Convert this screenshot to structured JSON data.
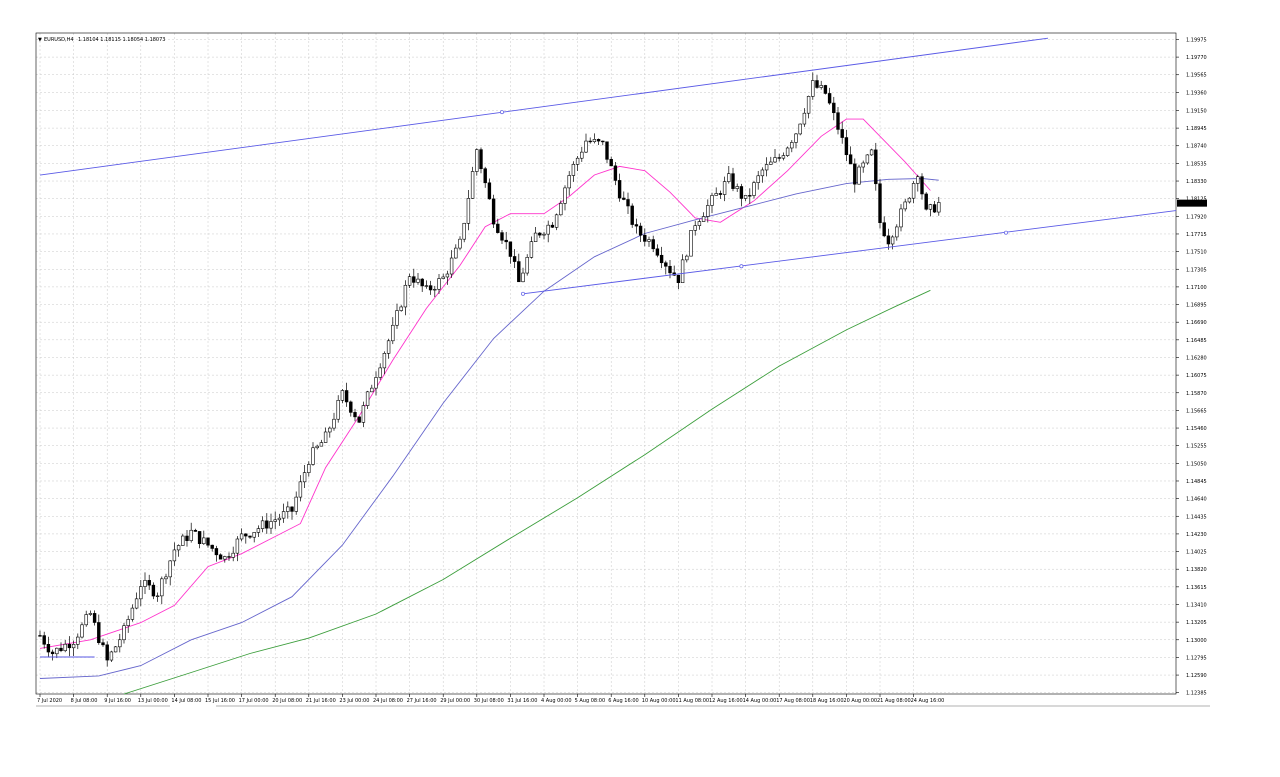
{
  "symbol": {
    "marker": "▼",
    "name": "EURUSD,H4",
    "quote": "1.18104 1.18115 1.18054 1.18073"
  },
  "colors": {
    "background": "#ffffff",
    "grid": "#c8c8c8",
    "candle": "#000000",
    "ma_fast": "#ff33cc",
    "ma_mid": "#6666cc",
    "ma_slow": "#3c9e3c",
    "trendline": "#5a5ae6",
    "price_label_bg": "#000000",
    "price_label_text": "#ffffff"
  },
  "chart_data": {
    "type": "candlestick",
    "grid": true,
    "price_axis_position": "right",
    "time_axis_position": "bottom",
    "ylim": [
      1.1237,
      1.2005
    ],
    "current_price": {
      "value": 1.18073,
      "label": "1.18073"
    },
    "y_ticks": [
      {
        "value": 1.19975,
        "label": "1.19975"
      },
      {
        "value": 1.1977,
        "label": "1.19770"
      },
      {
        "value": 1.19565,
        "label": "1.19565"
      },
      {
        "value": 1.1936,
        "label": "1.19360"
      },
      {
        "value": 1.1915,
        "label": "1.19150"
      },
      {
        "value": 1.18945,
        "label": "1.18945"
      },
      {
        "value": 1.1874,
        "label": "1.18740"
      },
      {
        "value": 1.18535,
        "label": "1.18535"
      },
      {
        "value": 1.1833,
        "label": "1.18330"
      },
      {
        "value": 1.18125,
        "label": "1.18125"
      },
      {
        "value": 1.1792,
        "label": "1.17920"
      },
      {
        "value": 1.17715,
        "label": "1.17715"
      },
      {
        "value": 1.1751,
        "label": "1.17510"
      },
      {
        "value": 1.17305,
        "label": "1.17305"
      },
      {
        "value": 1.171,
        "label": "1.17100"
      },
      {
        "value": 1.16895,
        "label": "1.16895"
      },
      {
        "value": 1.1669,
        "label": "1.16690"
      },
      {
        "value": 1.16485,
        "label": "1.16485"
      },
      {
        "value": 1.1628,
        "label": "1.16280"
      },
      {
        "value": 1.16075,
        "label": "1.16075"
      },
      {
        "value": 1.1587,
        "label": "1.15870"
      },
      {
        "value": 1.15665,
        "label": "1.15665"
      },
      {
        "value": 1.1546,
        "label": "1.15460"
      },
      {
        "value": 1.15255,
        "label": "1.15255"
      },
      {
        "value": 1.1505,
        "label": "1.15050"
      },
      {
        "value": 1.14845,
        "label": "1.14845"
      },
      {
        "value": 1.1464,
        "label": "1.14640"
      },
      {
        "value": 1.14435,
        "label": "1.14435"
      },
      {
        "value": 1.1423,
        "label": "1.14230"
      },
      {
        "value": 1.14025,
        "label": "1.14025"
      },
      {
        "value": 1.1382,
        "label": "1.13820"
      },
      {
        "value": 1.13615,
        "label": "1.13615"
      },
      {
        "value": 1.1341,
        "label": "1.13410"
      },
      {
        "value": 1.13205,
        "label": "1.13205"
      },
      {
        "value": 1.13,
        "label": "1.13000"
      },
      {
        "value": 1.12795,
        "label": "1.12795"
      },
      {
        "value": 1.1259,
        "label": "1.12590"
      },
      {
        "value": 1.12385,
        "label": "1.12385"
      }
    ],
    "x_ticks": [
      {
        "bar": 0,
        "label": "7 Jul 2020"
      },
      {
        "bar": 8,
        "label": "8 Jul 08:00"
      },
      {
        "bar": 16,
        "label": "9 Jul 16:00"
      },
      {
        "bar": 24,
        "label": "13 Jul 00:00"
      },
      {
        "bar": 32,
        "label": "14 Jul 08:00"
      },
      {
        "bar": 40,
        "label": "15 Jul 16:00"
      },
      {
        "bar": 48,
        "label": "17 Jul 00:00"
      },
      {
        "bar": 56,
        "label": "20 Jul 08:00"
      },
      {
        "bar": 64,
        "label": "21 Jul 16:00"
      },
      {
        "bar": 72,
        "label": "23 Jul 00:00"
      },
      {
        "bar": 80,
        "label": "24 Jul 08:00"
      },
      {
        "bar": 88,
        "label": "27 Jul 16:00"
      },
      {
        "bar": 96,
        "label": "29 Jul 00:00"
      },
      {
        "bar": 104,
        "label": "30 Jul 08:00"
      },
      {
        "bar": 112,
        "label": "31 Jul 16:00"
      },
      {
        "bar": 120,
        "label": "4 Aug 00:00"
      },
      {
        "bar": 128,
        "label": "5 Aug 08:00"
      },
      {
        "bar": 136,
        "label": "6 Aug 16:00"
      },
      {
        "bar": 144,
        "label": "10 Aug 00:00"
      },
      {
        "bar": 152,
        "label": "11 Aug 08:00"
      },
      {
        "bar": 160,
        "label": "12 Aug 16:00"
      },
      {
        "bar": 168,
        "label": "14 Aug 00:00"
      },
      {
        "bar": 176,
        "label": "17 Aug 08:00"
      },
      {
        "bar": 184,
        "label": "18 Aug 16:00"
      },
      {
        "bar": 192,
        "label": "20 Aug 00:00"
      },
      {
        "bar": 200,
        "label": "21 Aug 08:00"
      },
      {
        "bar": 208,
        "label": "24 Aug 16:00"
      }
    ],
    "anchors": [
      {
        "bar": 0,
        "close": 1.1305
      },
      {
        "bar": 3,
        "close": 1.1285
      },
      {
        "bar": 8,
        "close": 1.13
      },
      {
        "bar": 12,
        "close": 1.133
      },
      {
        "bar": 16,
        "close": 1.1275
      },
      {
        "bar": 20,
        "close": 1.131
      },
      {
        "bar": 24,
        "close": 1.1365
      },
      {
        "bar": 28,
        "close": 1.1355
      },
      {
        "bar": 32,
        "close": 1.1405
      },
      {
        "bar": 36,
        "close": 1.1425
      },
      {
        "bar": 40,
        "close": 1.141
      },
      {
        "bar": 44,
        "close": 1.1395
      },
      {
        "bar": 48,
        "close": 1.142
      },
      {
        "bar": 52,
        "close": 1.143
      },
      {
        "bar": 56,
        "close": 1.144
      },
      {
        "bar": 60,
        "close": 1.145
      },
      {
        "bar": 64,
        "close": 1.151
      },
      {
        "bar": 68,
        "close": 1.1535
      },
      {
        "bar": 72,
        "close": 1.1585
      },
      {
        "bar": 76,
        "close": 1.1555
      },
      {
        "bar": 80,
        "close": 1.161
      },
      {
        "bar": 84,
        "close": 1.166
      },
      {
        "bar": 88,
        "close": 1.1725
      },
      {
        "bar": 92,
        "close": 1.1705
      },
      {
        "bar": 96,
        "close": 1.172
      },
      {
        "bar": 100,
        "close": 1.176
      },
      {
        "bar": 104,
        "close": 1.187
      },
      {
        "bar": 108,
        "close": 1.179
      },
      {
        "bar": 112,
        "close": 1.175
      },
      {
        "bar": 114,
        "close": 1.1715
      },
      {
        "bar": 118,
        "close": 1.177
      },
      {
        "bar": 122,
        "close": 1.1785
      },
      {
        "bar": 126,
        "close": 1.184
      },
      {
        "bar": 130,
        "close": 1.188
      },
      {
        "bar": 134,
        "close": 1.1875
      },
      {
        "bar": 138,
        "close": 1.182
      },
      {
        "bar": 142,
        "close": 1.1775
      },
      {
        "bar": 146,
        "close": 1.176
      },
      {
        "bar": 150,
        "close": 1.173
      },
      {
        "bar": 152,
        "close": 1.172
      },
      {
        "bar": 156,
        "close": 1.1785
      },
      {
        "bar": 160,
        "close": 1.181
      },
      {
        "bar": 164,
        "close": 1.1835
      },
      {
        "bar": 168,
        "close": 1.181
      },
      {
        "bar": 172,
        "close": 1.1845
      },
      {
        "bar": 176,
        "close": 1.186
      },
      {
        "bar": 180,
        "close": 1.189
      },
      {
        "bar": 184,
        "close": 1.1945
      },
      {
        "bar": 187,
        "close": 1.1935
      },
      {
        "bar": 190,
        "close": 1.1895
      },
      {
        "bar": 194,
        "close": 1.1835
      },
      {
        "bar": 198,
        "close": 1.1865
      },
      {
        "bar": 200,
        "close": 1.1785
      },
      {
        "bar": 202,
        "close": 1.1765
      },
      {
        "bar": 206,
        "close": 1.1805
      },
      {
        "bar": 209,
        "close": 1.1845
      },
      {
        "bar": 211,
        "close": 1.1795
      },
      {
        "bar": 214,
        "close": 1.1807
      }
    ],
    "moving_averages": [
      {
        "name": "fast",
        "color_key": "ma_fast",
        "points": [
          {
            "bar": 0,
            "value": 1.129
          },
          {
            "bar": 12,
            "value": 1.13
          },
          {
            "bar": 24,
            "value": 1.132
          },
          {
            "bar": 32,
            "value": 1.134
          },
          {
            "bar": 40,
            "value": 1.1385
          },
          {
            "bar": 48,
            "value": 1.14
          },
          {
            "bar": 56,
            "value": 1.142
          },
          {
            "bar": 62,
            "value": 1.1435
          },
          {
            "bar": 68,
            "value": 1.15
          },
          {
            "bar": 76,
            "value": 1.156
          },
          {
            "bar": 84,
            "value": 1.1625
          },
          {
            "bar": 92,
            "value": 1.1685
          },
          {
            "bar": 100,
            "value": 1.1735
          },
          {
            "bar": 106,
            "value": 1.178
          },
          {
            "bar": 112,
            "value": 1.1795
          },
          {
            "bar": 120,
            "value": 1.1795
          },
          {
            "bar": 126,
            "value": 1.1815
          },
          {
            "bar": 132,
            "value": 1.184
          },
          {
            "bar": 138,
            "value": 1.185
          },
          {
            "bar": 144,
            "value": 1.1845
          },
          {
            "bar": 150,
            "value": 1.182
          },
          {
            "bar": 156,
            "value": 1.179
          },
          {
            "bar": 162,
            "value": 1.1785
          },
          {
            "bar": 170,
            "value": 1.181
          },
          {
            "bar": 178,
            "value": 1.1845
          },
          {
            "bar": 186,
            "value": 1.1885
          },
          {
            "bar": 192,
            "value": 1.1905
          },
          {
            "bar": 196,
            "value": 1.1905
          },
          {
            "bar": 200,
            "value": 1.1885
          },
          {
            "bar": 206,
            "value": 1.1855
          },
          {
            "bar": 212,
            "value": 1.1822
          }
        ]
      },
      {
        "name": "mid",
        "color_key": "ma_mid",
        "points": [
          {
            "bar": 0,
            "value": 1.1255
          },
          {
            "bar": 14,
            "value": 1.1258
          },
          {
            "bar": 24,
            "value": 1.127
          },
          {
            "bar": 36,
            "value": 1.13
          },
          {
            "bar": 48,
            "value": 1.132
          },
          {
            "bar": 60,
            "value": 1.135
          },
          {
            "bar": 72,
            "value": 1.141
          },
          {
            "bar": 84,
            "value": 1.149
          },
          {
            "bar": 96,
            "value": 1.1575
          },
          {
            "bar": 108,
            "value": 1.165
          },
          {
            "bar": 120,
            "value": 1.1705
          },
          {
            "bar": 132,
            "value": 1.1745
          },
          {
            "bar": 144,
            "value": 1.1772
          },
          {
            "bar": 156,
            "value": 1.1788
          },
          {
            "bar": 168,
            "value": 1.1803
          },
          {
            "bar": 180,
            "value": 1.1818
          },
          {
            "bar": 192,
            "value": 1.183
          },
          {
            "bar": 202,
            "value": 1.1835
          },
          {
            "bar": 210,
            "value": 1.1836
          },
          {
            "bar": 214,
            "value": 1.1834
          }
        ]
      },
      {
        "name": "slow",
        "color_key": "ma_slow",
        "points": [
          {
            "bar": 20,
            "value": 1.1237
          },
          {
            "bar": 36,
            "value": 1.1262
          },
          {
            "bar": 50,
            "value": 1.1284
          },
          {
            "bar": 64,
            "value": 1.1302
          },
          {
            "bar": 80,
            "value": 1.133
          },
          {
            "bar": 96,
            "value": 1.137
          },
          {
            "bar": 112,
            "value": 1.1418
          },
          {
            "bar": 128,
            "value": 1.1465
          },
          {
            "bar": 144,
            "value": 1.1515
          },
          {
            "bar": 160,
            "value": 1.1568
          },
          {
            "bar": 176,
            "value": 1.1618
          },
          {
            "bar": 192,
            "value": 1.166
          },
          {
            "bar": 204,
            "value": 1.1688
          },
          {
            "bar": 212,
            "value": 1.1706
          }
        ]
      }
    ],
    "trendlines": [
      {
        "name": "upper-channel",
        "from": {
          "bar": 0,
          "value": 1.184
        },
        "to": {
          "bar": 240,
          "value": 1.1999
        },
        "anchor_marks": [
          {
            "bar": 110,
            "value": 1.1913
          }
        ]
      },
      {
        "name": "lower-channel",
        "from": {
          "bar": 115,
          "value": 1.1702
        },
        "to": {
          "bar": 271,
          "value": 1.1799
        },
        "anchor_marks": [
          {
            "bar": 115,
            "value": 1.1702
          },
          {
            "bar": 167,
            "value": 1.1734
          },
          {
            "bar": 230,
            "value": 1.1773
          }
        ]
      },
      {
        "name": "tail-line",
        "from": {
          "bar": 0,
          "value": 1.128
        },
        "to": {
          "bar": 13,
          "value": 1.128
        }
      }
    ]
  }
}
